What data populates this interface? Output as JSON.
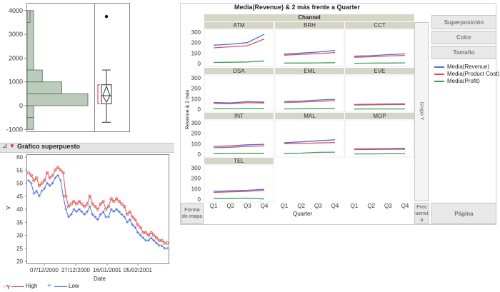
{
  "histogram": {
    "y_ticks": [
      "4000",
      "3000",
      "2000",
      "1000",
      "0",
      "-1000"
    ],
    "outlier_label": "•"
  },
  "overlay": {
    "section_title": "Gráfico superpuesto",
    "y_axis_label": "Y",
    "y_ticks": [
      "60",
      "55",
      "50",
      "45",
      "40",
      "35",
      "30",
      "25",
      "20"
    ],
    "x_ticks": [
      "07/12/2000",
      "27/12/2000",
      "16/01/2001",
      "05/02/2001"
    ],
    "x_label": "Date",
    "legend": [
      {
        "label": "High",
        "color": "#e05050"
      },
      {
        "label": "Low",
        "color": "#4a6fdc"
      }
    ]
  },
  "graph_builder": {
    "title": "Media(Revenue) & 2 más frente a Quarter",
    "wrap_label": "Channel",
    "y_axis_label": "Revenue & 2 más",
    "x_axis_label": "Quarter",
    "group_y_label": "Grupo Y",
    "y_ticks": [
      "300",
      "200",
      "100",
      "0"
    ],
    "x_ticks": [
      "Q1",
      "Q2",
      "Q3",
      "Q4"
    ],
    "panels": [
      "ATM",
      "BRH",
      "CCT",
      "DSA",
      "EML",
      "EVE",
      "INT",
      "MAL",
      "MOP",
      "TEL"
    ],
    "buttons": {
      "overlay": "Superposición",
      "color": "Color",
      "size": "Tamaño",
      "map_shape": "Forma de mapa",
      "frequency": "Frecuencia",
      "page": "Página"
    },
    "legend": [
      {
        "label": "Media(Revenue)",
        "color": "#4a6fdc"
      },
      {
        "label": "Media(Product Cost)",
        "color": "#e05050"
      },
      {
        "label": "Media(Profit)",
        "color": "#3aa050"
      }
    ]
  },
  "chart_data": [
    {
      "type": "bar",
      "title": "",
      "orientation": "horizontal",
      "bin_edges": [
        -1000,
        -500,
        0,
        500,
        1000,
        1500,
        4000
      ],
      "counts": [
        3,
        3,
        28,
        16,
        7,
        3
      ],
      "outlier": 3750,
      "box": {
        "min": -700,
        "q1": 80,
        "median": 420,
        "q3": 880,
        "max": 1500
      },
      "ylim": [
        -1000,
        4200
      ]
    },
    {
      "type": "line",
      "title": "Gráfico superpuesto",
      "xlabel": "Date",
      "ylabel": "Y",
      "ylim": [
        20,
        60
      ],
      "series": [
        {
          "name": "High",
          "values": [
            54,
            53,
            51,
            52,
            49,
            50,
            51,
            54,
            52,
            53,
            55,
            56,
            55,
            54,
            45,
            41,
            42,
            43,
            42,
            43,
            42,
            41,
            42,
            45,
            42,
            41,
            40,
            42,
            43,
            40,
            41,
            44,
            43,
            44,
            43,
            42,
            41,
            38,
            39,
            37,
            36,
            34,
            33,
            31,
            31,
            30,
            31,
            30,
            29,
            28,
            28,
            27,
            27
          ]
        },
        {
          "name": "Low",
          "values": [
            51,
            50,
            46,
            47,
            45,
            47,
            48,
            50,
            49,
            50,
            52,
            53,
            51,
            45,
            40,
            37,
            38,
            40,
            39,
            40,
            39,
            38,
            39,
            41,
            38,
            37,
            36,
            38,
            39,
            37,
            37,
            40,
            39,
            40,
            39,
            38,
            37,
            35,
            36,
            34,
            33,
            31,
            30,
            29,
            28,
            28,
            29,
            28,
            27,
            26,
            26,
            25,
            25
          ]
        }
      ]
    },
    {
      "type": "line",
      "title": "Media(Revenue) & 2 más frente a Quarter",
      "xlabel": "Quarter",
      "ylabel": "Revenue & 2 más",
      "categories": [
        "Q1",
        "Q2",
        "Q3",
        "Q4"
      ],
      "ylim": [
        0,
        300
      ],
      "panels": [
        {
          "name": "ATM",
          "series": [
            {
              "name": "Media(Revenue)",
              "values": [
                175,
                185,
                200,
                280
              ]
            },
            {
              "name": "Media(Product Cost)",
              "values": [
                150,
                160,
                170,
                235
              ]
            },
            {
              "name": "Media(Profit)",
              "values": [
                10,
                12,
                15,
                25
              ]
            }
          ]
        },
        {
          "name": "BRH",
          "series": [
            {
              "name": "Media(Revenue)",
              "values": [
                90,
                100,
                110,
                125
              ]
            },
            {
              "name": "Media(Product Cost)",
              "values": [
                80,
                88,
                95,
                105
              ]
            },
            {
              "name": "Media(Profit)",
              "values": [
                5,
                5,
                6,
                8
              ]
            }
          ]
        },
        {
          "name": "CCT",
          "series": [
            {
              "name": "Media(Revenue)",
              "values": [
                70,
                75,
                85,
                92
              ]
            },
            {
              "name": "Media(Product Cost)",
              "values": [
                60,
                65,
                72,
                78
              ]
            },
            {
              "name": "Media(Profit)",
              "values": [
                3,
                4,
                5,
                6
              ]
            }
          ]
        },
        {
          "name": "DSA",
          "series": [
            {
              "name": "Media(Revenue)",
              "values": [
                65,
                60,
                72,
                68
              ]
            },
            {
              "name": "Media(Product Cost)",
              "values": [
                55,
                52,
                62,
                60
              ]
            },
            {
              "name": "Media(Profit)",
              "values": [
                5,
                4,
                6,
                5
              ]
            }
          ]
        },
        {
          "name": "EML",
          "series": [
            {
              "name": "Media(Revenue)",
              "values": [
                75,
                78,
                88,
                95
              ]
            },
            {
              "name": "Media(Product Cost)",
              "values": [
                65,
                68,
                75,
                82
              ]
            },
            {
              "name": "Media(Profit)",
              "values": [
                3,
                4,
                5,
                6
              ]
            }
          ]
        },
        {
          "name": "EVE",
          "series": [
            {
              "name": "Media(Revenue)",
              "values": [
                45,
                48,
                50,
                52
              ]
            },
            {
              "name": "Media(Product Cost)",
              "values": [
                40,
                42,
                44,
                46
              ]
            },
            {
              "name": "Media(Profit)",
              "values": [
                2,
                3,
                3,
                3
              ]
            }
          ]
        },
        {
          "name": "INT",
          "series": [
            {
              "name": "Media(Revenue)",
              "values": [
                75,
                80,
                90,
                95
              ]
            },
            {
              "name": "Media(Product Cost)",
              "values": [
                62,
                66,
                75,
                80
              ]
            },
            {
              "name": "Media(Profit)",
              "values": [
                5,
                6,
                8,
                8
              ]
            }
          ]
        },
        {
          "name": "MAL",
          "series": [
            {
              "name": "Media(Revenue)",
              "values": [
                110,
                118,
                128,
                138
              ]
            },
            {
              "name": "Media(Product Cost)",
              "values": [
                100,
                102,
                108,
                112
              ]
            },
            {
              "name": "Media(Profit)",
              "values": [
                8,
                10,
                18,
                20
              ]
            }
          ]
        },
        {
          "name": "MOP",
          "series": [
            {
              "name": "Media(Revenue)",
              "values": [
                50,
                52,
                54,
                56
              ]
            },
            {
              "name": "Media(Product Cost)",
              "values": [
                44,
                45,
                47,
                48
              ]
            },
            {
              "name": "Media(Profit)",
              "values": [
                3,
                3,
                4,
                4
              ]
            }
          ]
        },
        {
          "name": "TEL",
          "series": [
            {
              "name": "Media(Revenue)",
              "values": [
                75,
                80,
                85,
                95
              ]
            },
            {
              "name": "Media(Product Cost)",
              "values": [
                65,
                70,
                75,
                85
              ]
            },
            {
              "name": "Media(Profit)",
              "values": [
                5,
                8,
                10,
                2
              ]
            }
          ]
        }
      ]
    }
  ]
}
